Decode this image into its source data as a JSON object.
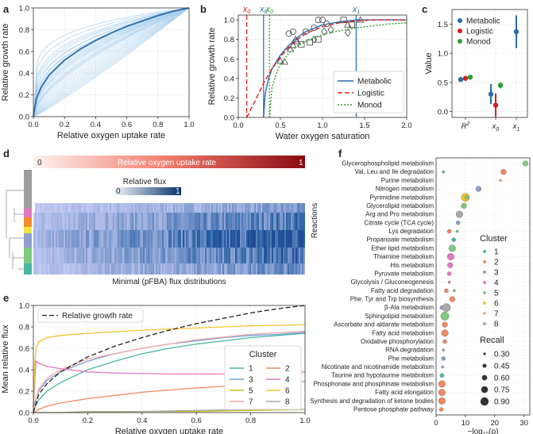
{
  "panel_labels": [
    "a",
    "b",
    "c",
    "d",
    "e",
    "f"
  ],
  "chart_data": [
    {
      "panel": "a",
      "type": "line",
      "xlabel": "Relative oxygen uptake rate",
      "ylabel": "Relative growth rate",
      "xlim": [
        0,
        1
      ],
      "ylim": [
        0,
        1
      ],
      "xticks": [
        "0.0",
        "0.2",
        "0.4",
        "0.6",
        "0.8",
        "1.0"
      ],
      "yticks": [
        "0.0",
        "0.2",
        "0.4",
        "0.6",
        "0.8",
        "1.0"
      ],
      "grid": true,
      "colors": {
        "mean": "#2b6ca8",
        "ensemble": "#a8cfee"
      },
      "ensemble_exponents": [
        0.18,
        0.22,
        0.26,
        0.3,
        0.34,
        0.38,
        0.42,
        0.46,
        0.5,
        0.55,
        0.6,
        0.65,
        0.7,
        0.75,
        0.8,
        0.85,
        0.9,
        0.95,
        1.0,
        1.05,
        1.1,
        0.28,
        0.33,
        0.37,
        0.44,
        0.48,
        0.52,
        0.58,
        0.62,
        0.4
      ],
      "mean_curve": {
        "x": [
          0,
          0.02,
          0.05,
          0.1,
          0.2,
          0.3,
          0.4,
          0.5,
          0.6,
          0.7,
          0.8,
          0.9,
          1.0
        ],
        "y": [
          0,
          0.17,
          0.27,
          0.38,
          0.52,
          0.62,
          0.7,
          0.77,
          0.83,
          0.88,
          0.93,
          0.97,
          1.0
        ]
      }
    },
    {
      "panel": "b",
      "type": "line",
      "xlabel": "Water oxygen saturation",
      "ylabel": "Relative growth rate",
      "xlim": [
        0,
        2
      ],
      "ylim": [
        0,
        1.05
      ],
      "xticks": [
        "0.0",
        "0.5",
        "1.0",
        "1.5",
        "2.0"
      ],
      "yticks": [
        "0.0",
        "0.2",
        "0.4",
        "0.6",
        "0.8",
        "1.0"
      ],
      "grid": true,
      "legend": "bottom-right",
      "series": [
        {
          "name": "Metabolic",
          "color": "#2b6ca8",
          "dash": "",
          "x": [
            0.3,
            0.32,
            0.36,
            0.4,
            0.5,
            0.6,
            0.7,
            0.8,
            1.0,
            1.2,
            1.4,
            1.6,
            1.8,
            2.0
          ],
          "y": [
            0.0,
            0.25,
            0.4,
            0.5,
            0.64,
            0.74,
            0.82,
            0.88,
            0.95,
            0.98,
            1.0,
            1.0,
            1.0,
            1.0
          ]
        },
        {
          "name": "Logistic",
          "color": "#e02020",
          "dash": "6,3",
          "x": [
            0.1,
            0.2,
            0.3,
            0.4,
            0.5,
            0.6,
            0.7,
            0.8,
            1.0,
            1.2,
            1.4,
            1.6,
            2.0
          ],
          "y": [
            0.0,
            0.17,
            0.35,
            0.5,
            0.62,
            0.72,
            0.8,
            0.86,
            0.93,
            0.97,
            0.99,
            1.0,
            1.0
          ]
        },
        {
          "name": "Monod",
          "color": "#2ca02c",
          "dash": "2,2",
          "x": [
            0.37,
            0.4,
            0.45,
            0.5,
            0.6,
            0.7,
            0.8,
            1.0,
            1.2,
            1.5,
            1.8,
            2.0
          ],
          "y": [
            0.0,
            0.3,
            0.45,
            0.55,
            0.66,
            0.73,
            0.78,
            0.85,
            0.89,
            0.93,
            0.96,
            0.97
          ]
        }
      ],
      "vlines": [
        {
          "label": "x",
          "sub": "0",
          "x": 0.1,
          "color": "#e02020",
          "dash": "6,3"
        },
        {
          "label": "x",
          "sub": "0",
          "x": 0.3,
          "color": "#2b6ca8",
          "dash": ""
        },
        {
          "label": "x",
          "sub": "0",
          "x": 0.37,
          "color": "#2ca02c",
          "dash": "2,2"
        },
        {
          "label": "x",
          "sub": "1",
          "x": 1.4,
          "color": "#2b6ca8",
          "dash": ""
        }
      ],
      "markers": {
        "circle": [
          [
            0.6,
            0.86
          ],
          [
            0.65,
            0.88
          ],
          [
            0.8,
            0.88
          ],
          [
            0.9,
            0.92
          ],
          [
            0.95,
            1.0
          ],
          [
            1.0,
            1.0
          ],
          [
            1.05,
            0.96
          ]
        ],
        "triangle": [
          [
            0.5,
            0.58
          ],
          [
            0.55,
            0.57
          ],
          [
            0.62,
            0.7
          ],
          [
            0.65,
            0.74
          ],
          [
            0.68,
            0.8
          ],
          [
            0.7,
            0.78
          ],
          [
            1.3,
            0.95
          ],
          [
            1.45,
            1.0
          ]
        ],
        "square": [
          [
            0.75,
            0.75
          ],
          [
            0.85,
            0.77
          ],
          [
            0.95,
            0.8
          ],
          [
            1.25,
            1.0
          ],
          [
            1.35,
            0.95
          ]
        ],
        "diamond": [
          [
            0.9,
            0.8
          ],
          [
            1.02,
            0.88
          ],
          [
            1.1,
            0.9
          ],
          [
            1.3,
            0.87
          ]
        ]
      }
    },
    {
      "panel": "c",
      "type": "scatter",
      "ylabel": "Value",
      "ylim": [
        -0.1,
        1.75
      ],
      "yticks": [
        "0.0",
        "0.5",
        "1.0",
        "1.5"
      ],
      "grid": true,
      "legend": "top-left",
      "categories": [
        {
          "main": "R",
          "sup": "2"
        },
        {
          "main": "x",
          "sub": "0"
        },
        {
          "main": "x",
          "sub": "1"
        }
      ],
      "series": [
        {
          "name": "Metabolic",
          "color": "#2b6ca8",
          "points": [
            {
              "cat": 0,
              "value": 0.55,
              "err": 0.02
            },
            {
              "cat": 1,
              "value": 0.3,
              "err": 0.17
            },
            {
              "cat": 2,
              "value": 1.37,
              "err": 0.28
            }
          ]
        },
        {
          "name": "Logistic",
          "color": "#d62020",
          "points": [
            {
              "cat": 0,
              "value": 0.57,
              "err": 0.02
            },
            {
              "cat": 1,
              "value": 0.11,
              "err": 0.2
            }
          ]
        },
        {
          "name": "Monod",
          "color": "#2ca02c",
          "points": [
            {
              "cat": 0,
              "value": 0.59,
              "err": 0.02
            },
            {
              "cat": 1,
              "value": 0.45,
              "err": 0.05
            }
          ]
        }
      ]
    },
    {
      "panel": "d",
      "type": "heatmap",
      "top_bar_label": "Relative oxygen uptake rate",
      "top_bar_min": "0",
      "top_bar_max": "1",
      "colorbar_label": "Relative flux",
      "colorbar_min": "0",
      "colorbar_max": "1",
      "xlabel": "Minimal (pFBA) flux distributions",
      "ylabel": "Reactions",
      "cluster_colors": [
        "#9e9e9e",
        "#e377c2",
        "#f28e2b",
        "#f0e442",
        "#8fa0cf",
        "#7fc97f",
        "#4ab7a3"
      ]
    },
    {
      "panel": "e",
      "type": "line",
      "xlabel": "Relative oxygen uptake rate",
      "ylabel": "Mean relative flux",
      "xlim": [
        0,
        1
      ],
      "ylim": [
        0,
        1
      ],
      "xticks": [
        "0.0",
        "0.2",
        "0.4",
        "0.6",
        "0.8",
        "1.0"
      ],
      "yticks": [
        "0.0",
        "0.2",
        "0.4",
        "0.6",
        "0.8",
        "1.0"
      ],
      "grid": true,
      "reference": {
        "name": "Relative growth rate",
        "color": "#222222",
        "dash": "6,3",
        "x": [
          0,
          0.02,
          0.05,
          0.1,
          0.2,
          0.3,
          0.4,
          0.5,
          0.6,
          0.7,
          0.8,
          0.9,
          1.0
        ],
        "y": [
          0,
          0.17,
          0.27,
          0.38,
          0.52,
          0.62,
          0.7,
          0.77,
          0.83,
          0.88,
          0.93,
          0.97,
          1.0
        ]
      },
      "legend_title": "Cluster",
      "series": [
        {
          "name": "1",
          "color": "#4ab7a3",
          "x": [
            0,
            0.02,
            0.05,
            0.1,
            0.2,
            0.3,
            0.4,
            0.5,
            0.6,
            0.7,
            0.8,
            0.9,
            1.0
          ],
          "y": [
            0.02,
            0.12,
            0.2,
            0.28,
            0.4,
            0.48,
            0.55,
            0.6,
            0.64,
            0.67,
            0.7,
            0.72,
            0.74
          ]
        },
        {
          "name": "2",
          "color": "#f08a60",
          "x": [
            0,
            0.02,
            0.05,
            0.1,
            0.2,
            0.4,
            0.6,
            0.8,
            1.0
          ],
          "y": [
            0.0,
            0.03,
            0.06,
            0.09,
            0.13,
            0.19,
            0.23,
            0.26,
            0.29
          ]
        },
        {
          "name": "3",
          "color": "#6ea5d7",
          "x": [
            0,
            0.02,
            0.05,
            0.1,
            0.2,
            0.3,
            0.4,
            0.5,
            0.6,
            0.7,
            0.8,
            0.9,
            1.0
          ],
          "y": [
            0.05,
            0.2,
            0.3,
            0.38,
            0.48,
            0.55,
            0.6,
            0.64,
            0.67,
            0.7,
            0.72,
            0.73,
            0.75
          ]
        },
        {
          "name": "4",
          "color": "#e377c2",
          "x": [
            0,
            0.005,
            0.01,
            0.02,
            0.05,
            0.1,
            0.2,
            0.3,
            0.5,
            0.7,
            0.9,
            1.0
          ],
          "y": [
            0.0,
            0.3,
            0.48,
            0.46,
            0.43,
            0.41,
            0.38,
            0.37,
            0.36,
            0.36,
            0.37,
            0.38
          ]
        },
        {
          "name": "5",
          "color": "#c6c620",
          "x": [
            0,
            0.02,
            0.05,
            0.1,
            0.2,
            0.4,
            0.6,
            0.8,
            1.0
          ],
          "y": [
            0.0,
            0.0,
            0.0,
            0.0,
            0.0,
            0.01,
            0.01,
            0.02,
            0.03
          ]
        },
        {
          "name": "6",
          "color": "#f4c430",
          "x": [
            0,
            0.005,
            0.01,
            0.02,
            0.05,
            0.1,
            0.2,
            0.4,
            0.6,
            0.8,
            1.0
          ],
          "y": [
            0.0,
            0.45,
            0.6,
            0.66,
            0.7,
            0.72,
            0.74,
            0.77,
            0.79,
            0.81,
            0.82
          ]
        },
        {
          "name": "7",
          "color": "#f4a6a6",
          "x": [
            0,
            0.02,
            0.05,
            0.1,
            0.2,
            0.4,
            0.6,
            0.8,
            1.0
          ],
          "y": [
            0.0,
            0.22,
            0.32,
            0.4,
            0.5,
            0.6,
            0.68,
            0.73,
            0.76
          ]
        },
        {
          "name": "8",
          "color": "#a9a9a9",
          "x": [
            0,
            0.02,
            0.05,
            0.1,
            0.2,
            0.4,
            0.6,
            0.8,
            1.0
          ],
          "y": [
            0.0,
            0.0,
            0.0,
            0.0,
            0.01,
            0.01,
            0.02,
            0.03,
            0.03
          ]
        }
      ]
    },
    {
      "panel": "f",
      "type": "scatter",
      "xlabel": "−log₁₀(p)",
      "xlim": [
        0,
        32
      ],
      "xticks": [
        "0",
        "10",
        "20",
        "30"
      ],
      "grid": true,
      "cluster_legend_title": "Cluster",
      "cluster_colors": {
        "1": "#4ab7a3",
        "2": "#f08a60",
        "3": "#8fa0cf",
        "4": "#e377c2",
        "5": "#7fc97f",
        "6": "#f4c430",
        "7": "#e8b58f",
        "8": "#a9a9a9"
      },
      "recall_legend_title": "Recall",
      "recall_levels": [
        "0.30",
        "0.45",
        "0.60",
        "0.75",
        "0.90"
      ],
      "categories": [
        "Glycerophospholipid metabolism",
        "Val, Leu and Ile degradation",
        "Purine metabolism",
        "Nitrogen metabolism",
        "Pyrimidine metabolism",
        "Glycerolipid metabolism",
        "Arg and Pro metabolism",
        "Citrate cycle (TCA cycle)",
        "Lys degradation",
        "Propanoate metabolism",
        "Ether lipid metabolism",
        "Thiamine metabolism",
        "His metabolism",
        "Pyruvate metabolism",
        "Glycolysis / Gluconeogenesis",
        "Fatty acid degradation",
        "Phe, Tyr and Trp biosynthesis",
        "β-Ala metabolism",
        "Sphingolipid metabolism",
        "Ascorbate and aldarate metabolism",
        "Fatty acid metabolism",
        "Oxidative phosphorylation",
        "RNA degradation",
        "Phe metabolism",
        "Nicotinate and nicotinamide metabolism",
        "Taurine and hypotaurine metabolism",
        "Phosphonate and phosphinate metabolism",
        "Fatty acid elongation",
        "Synthesis and degradation of ketone bodies",
        "Pentose phosphate pathway"
      ],
      "points": [
        {
          "row": 0,
          "x": 30.5,
          "cluster": "5",
          "recall": 0.6
        },
        {
          "row": 1,
          "x": 2.5,
          "cluster": "1",
          "recall": 0.3
        },
        {
          "row": 1,
          "x": 23.0,
          "cluster": "2",
          "recall": 0.6
        },
        {
          "row": 2,
          "x": 22.0,
          "cluster": "7",
          "recall": 0.3
        },
        {
          "row": 3,
          "x": 14.5,
          "cluster": "3",
          "recall": 0.6
        },
        {
          "row": 4,
          "x": 10.0,
          "cluster": "6",
          "recall": 0.9
        },
        {
          "row": 4,
          "x": 10.5,
          "cluster": "5",
          "recall": 0.45
        },
        {
          "row": 5,
          "x": 9.5,
          "cluster": "5",
          "recall": 0.6
        },
        {
          "row": 6,
          "x": 8.0,
          "cluster": "8",
          "recall": 0.75
        },
        {
          "row": 7,
          "x": 7.5,
          "cluster": "3",
          "recall": 0.45
        },
        {
          "row": 8,
          "x": 4.5,
          "cluster": "2",
          "recall": 0.45
        },
        {
          "row": 8,
          "x": 7.2,
          "cluster": "5",
          "recall": 0.3
        },
        {
          "row": 9,
          "x": 6.0,
          "cluster": "1",
          "recall": 0.45
        },
        {
          "row": 10,
          "x": 5.5,
          "cluster": "5",
          "recall": 0.75
        },
        {
          "row": 11,
          "x": 5.0,
          "cluster": "4",
          "recall": 0.75
        },
        {
          "row": 12,
          "x": 4.8,
          "cluster": "4",
          "recall": 0.6
        },
        {
          "row": 13,
          "x": 4.5,
          "cluster": "4",
          "recall": 0.45
        },
        {
          "row": 14,
          "x": 4.5,
          "cluster": "4",
          "recall": 0.3
        },
        {
          "row": 15,
          "x": 3.5,
          "cluster": "2",
          "recall": 0.45
        },
        {
          "row": 15,
          "x": 6.2,
          "cluster": "5",
          "recall": 0.3
        },
        {
          "row": 16,
          "x": 5.5,
          "cluster": "2",
          "recall": 0.6
        },
        {
          "row": 17,
          "x": 2.0,
          "cluster": "3",
          "recall": 0.45
        },
        {
          "row": 17,
          "x": 3.5,
          "cluster": "8",
          "recall": 0.9
        },
        {
          "row": 18,
          "x": 3.0,
          "cluster": "5",
          "recall": 0.9
        },
        {
          "row": 19,
          "x": 3.0,
          "cluster": "2",
          "recall": 0.6
        },
        {
          "row": 20,
          "x": 3.0,
          "cluster": "2",
          "recall": 0.75
        },
        {
          "row": 21,
          "x": 3.0,
          "cluster": "2",
          "recall": 0.45
        },
        {
          "row": 22,
          "x": 2.5,
          "cluster": "3",
          "recall": 0.3
        },
        {
          "row": 23,
          "x": 2.5,
          "cluster": "3",
          "recall": 0.45
        },
        {
          "row": 24,
          "x": 2.2,
          "cluster": "3",
          "recall": 0.3
        },
        {
          "row": 25,
          "x": 2.0,
          "cluster": "1",
          "recall": 0.45
        },
        {
          "row": 26,
          "x": 2.0,
          "cluster": "2",
          "recall": 0.75
        },
        {
          "row": 27,
          "x": 2.0,
          "cluster": "2",
          "recall": 0.75
        },
        {
          "row": 28,
          "x": 2.0,
          "cluster": "2",
          "recall": 0.75
        },
        {
          "row": 29,
          "x": 1.8,
          "cluster": "2",
          "recall": 0.45
        }
      ]
    }
  ]
}
